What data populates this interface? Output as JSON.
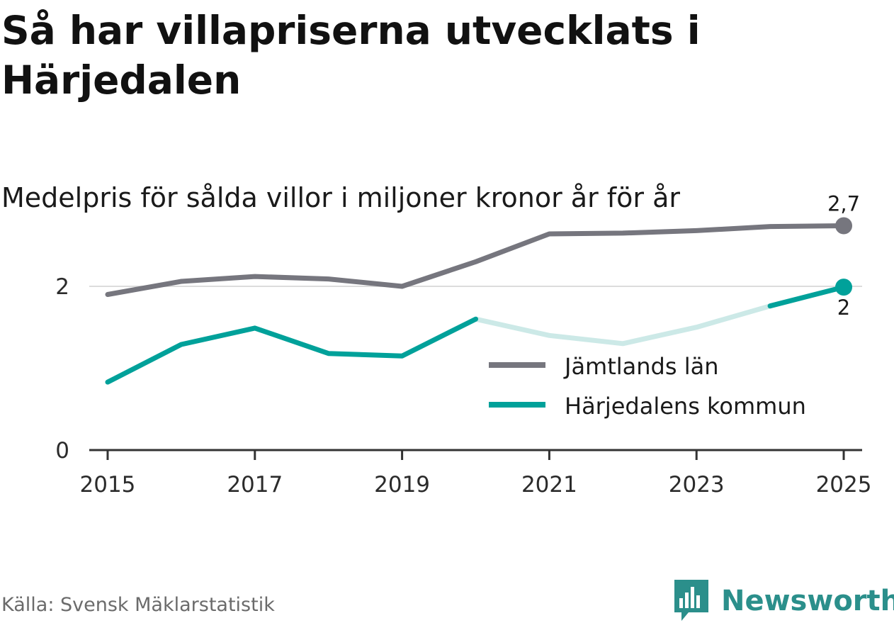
{
  "title": "Så har villapriserna utvecklats i Härjedalen",
  "subtitle": "Medelpris för sålda villor i miljoner kronor år för år",
  "source": "Källa: Svensk Mäklarstatistik",
  "brand": {
    "name": "Newsworthy",
    "icon": "newsworthy-logo-icon",
    "color": "#2b8f8b"
  },
  "chart_data": {
    "type": "line",
    "title": "Så har villapriserna utvecklats i Härjedalen",
    "subtitle": "Medelpris för sålda villor i miljoner kronor år för år",
    "xlabel": "",
    "ylabel": "",
    "x": [
      2015,
      2016,
      2017,
      2018,
      2019,
      2020,
      2021,
      2022,
      2023,
      2024,
      2025
    ],
    "x_ticks": [
      "2015",
      "2017",
      "2019",
      "2021",
      "2023",
      "2025"
    ],
    "y_ticks": [
      "0",
      "2"
    ],
    "ylim": [
      0,
      2.9
    ],
    "xlim": [
      2014.75,
      2025.25
    ],
    "grid": "horizontal at 2",
    "legend_placement": "center-right",
    "series": [
      {
        "name": "Jämtlands län",
        "color": "#76767e",
        "values": [
          1.9,
          2.06,
          2.12,
          2.09,
          2.0,
          2.3,
          2.64,
          2.65,
          2.68,
          2.73,
          2.74
        ],
        "end_label": "2,7"
      },
      {
        "name": "Härjedalens kommun",
        "color": "#00a19a",
        "faded_color": "#cce9e7",
        "values": [
          0.83,
          1.29,
          1.49,
          1.18,
          1.15,
          1.6,
          1.4,
          1.3,
          1.5,
          1.76,
          1.99
        ],
        "end_label": "2"
      }
    ]
  }
}
